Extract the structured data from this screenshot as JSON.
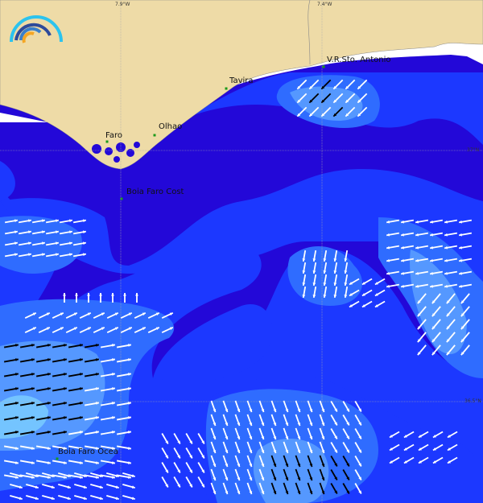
{
  "map": {
    "longitude_ticks": [
      "7.9°W",
      "7.4°W"
    ],
    "latitude_ticks": [
      "37°N",
      "36.5°N"
    ],
    "places": [
      "Faro",
      "Olhao",
      "Tavira",
      "V.R.Sto. Antonio",
      "Boia Faro Cost",
      "Boia Faro Ocea"
    ],
    "colors": {
      "land": "#eedba7",
      "no_data": "#ffffff",
      "level_1": "#2308d8",
      "level_2": "#1c38ff",
      "level_3": "#2f6cff",
      "level_4": "#5598ff",
      "level_5": "#74c4ff",
      "arrow_low": "#ffffff",
      "arrow_high": "#000000",
      "station_marker": "#1a9a1a"
    },
    "arrow_fields": [
      {
        "region": "east-coastal",
        "direction_deg": 225
      },
      {
        "region": "west",
        "direction_deg": 80
      },
      {
        "region": "center",
        "direction_deg": 190
      },
      {
        "region": "east",
        "direction_deg": 260
      },
      {
        "region": "south",
        "direction_deg": 160
      }
    ]
  }
}
